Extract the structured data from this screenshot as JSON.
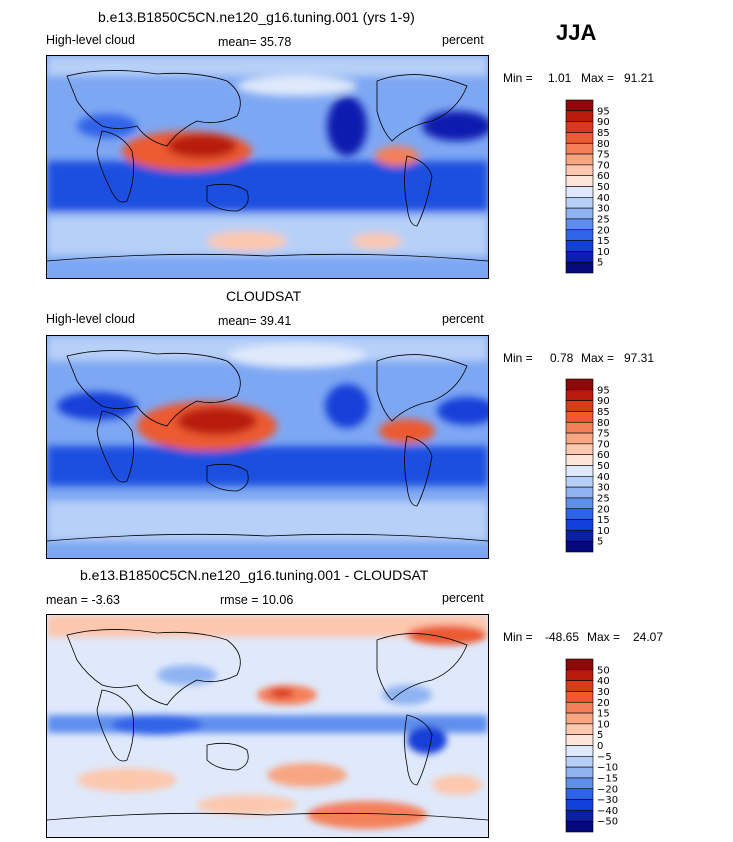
{
  "season": "JJA",
  "panels": [
    {
      "title": "b.e13.B1850C5CN.ne120_g16.tuning.001 (yrs 1-9)",
      "left_label": "High-level cloud",
      "center_label": "mean=  35.78",
      "right_label": "percent",
      "min_label": "Min =",
      "min_value": "1.01",
      "max_label": "Max =",
      "max_value": "91.21",
      "colorbar_labels": [
        "95",
        "90",
        "85",
        "80",
        "75",
        "70",
        "60",
        "50",
        "40",
        "30",
        "25",
        "20",
        "15",
        "10",
        "5"
      ],
      "colorbar_colors": [
        "#8c0a0a",
        "#b81a0c",
        "#d93b1a",
        "#ec5a33",
        "#f4805a",
        "#f8a582",
        "#fcc7ad",
        "#fde6d9",
        "#dfe9fb",
        "#b7d0f8",
        "#8fb3f3",
        "#5f8fee",
        "#3064e8",
        "#1340d8",
        "#0a1fb0",
        "#050a7a"
      ]
    },
    {
      "title": "CLOUDSAT",
      "left_label": "High-level cloud",
      "center_label": "mean=  39.41",
      "right_label": "percent",
      "min_label": "Min =",
      "min_value": "0.78",
      "max_label": "Max =",
      "max_value": "97.31",
      "colorbar_labels": [
        "95",
        "90",
        "85",
        "80",
        "75",
        "70",
        "60",
        "50",
        "40",
        "30",
        "25",
        "20",
        "15",
        "10",
        "5"
      ],
      "colorbar_colors": [
        "#8c0a0a",
        "#b81a0c",
        "#d93b1a",
        "#ec5a33",
        "#f4805a",
        "#f8a582",
        "#fcc7ad",
        "#fde6d9",
        "#dfe9fb",
        "#b7d0f8",
        "#8fb3f3",
        "#5f8fee",
        "#3064e8",
        "#1340d8",
        "#0a1fb0",
        "#050a7a"
      ]
    },
    {
      "title": "b.e13.B1850C5CN.ne120_g16.tuning.001 - CLOUDSAT",
      "left_label": "mean =  -3.63",
      "center_label": "rmse =  10.06",
      "right_label": "percent",
      "min_label": "Min =",
      "min_value": "-48.65",
      "max_label": "Max =",
      "max_value": "24.07",
      "colorbar_labels": [
        "50",
        "40",
        "30",
        "20",
        "15",
        "10",
        "5",
        "0",
        "−5",
        "−10",
        "−15",
        "−20",
        "−30",
        "−40",
        "−50"
      ],
      "colorbar_colors": [
        "#8c0a0a",
        "#b81a0c",
        "#d93b1a",
        "#ec5a33",
        "#f4805a",
        "#f8a582",
        "#fcc7ad",
        "#fde6d9",
        "#dfe9fb",
        "#b7d0f8",
        "#8fb3f3",
        "#5f8fee",
        "#3064e8",
        "#1340d8",
        "#0a1fb0",
        "#050a7a"
      ]
    }
  ]
}
